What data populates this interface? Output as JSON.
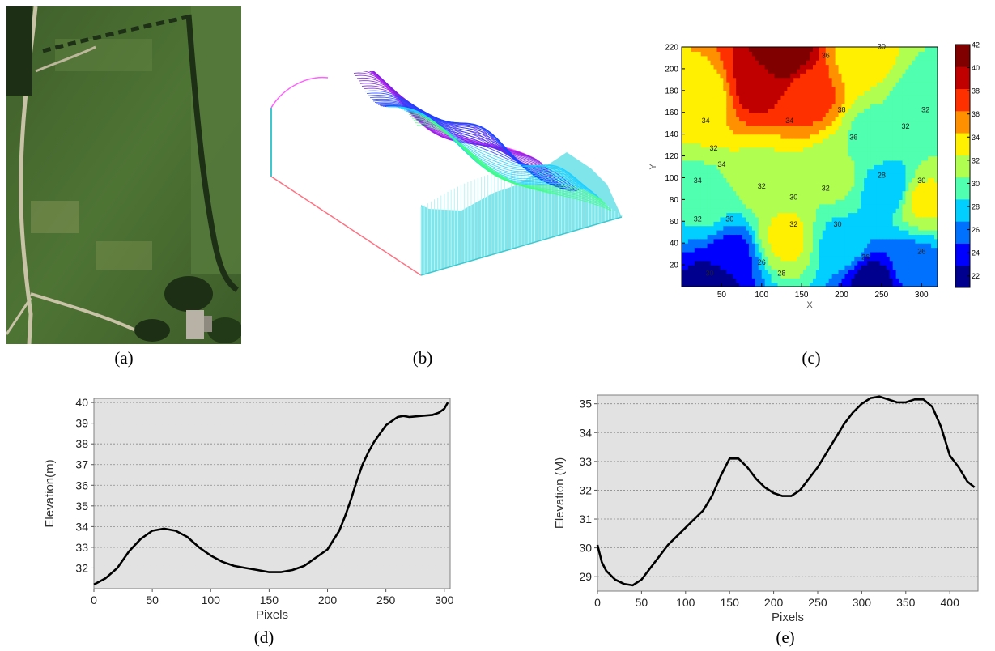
{
  "captions": {
    "a": "(a)",
    "b": "(b)",
    "c": "(c)",
    "d": "(d)",
    "e": "(e)"
  },
  "photo": {
    "colors": {
      "field": "#476a30",
      "track": "#c8c2a6",
      "hedge": "#1d3015",
      "roof": "#b8b1a6"
    }
  },
  "surface_colors": [
    "#ff40ff",
    "#8020e0",
    "#2040ff",
    "#20d0ff",
    "#40ff80",
    "#f0ff40"
  ],
  "chart_data": [
    {
      "id": "c",
      "type": "heatmap",
      "subtype": "contour",
      "title": "",
      "xlabel": "X",
      "ylabel": "Y",
      "xlim": [
        0,
        320
      ],
      "ylim": [
        0,
        220
      ],
      "x_ticks": [
        50,
        100,
        150,
        200,
        250,
        300
      ],
      "y_ticks": [
        20,
        40,
        60,
        80,
        100,
        120,
        140,
        160,
        180,
        200,
        220
      ],
      "colorbar": {
        "ticks": [
          22,
          24,
          26,
          28,
          30,
          32,
          34,
          36,
          38,
          40,
          42
        ],
        "range": [
          21,
          42
        ],
        "colors": [
          "#00008f",
          "#0000ff",
          "#0070ff",
          "#00cfff",
          "#50ffaf",
          "#b0ff50",
          "#ffef00",
          "#ff9000",
          "#ff3000",
          "#c00000",
          "#800000"
        ]
      },
      "field_peaks": [
        {
          "x": 125,
          "y": 215,
          "v": 42
        },
        {
          "x": 90,
          "y": 185,
          "v": 39
        },
        {
          "x": 160,
          "y": 175,
          "v": 37
        },
        {
          "x": 30,
          "y": 175,
          "v": 33
        },
        {
          "x": 230,
          "y": 210,
          "v": 33
        },
        {
          "x": 305,
          "y": 170,
          "v": 29
        },
        {
          "x": 130,
          "y": 45,
          "v": 33
        },
        {
          "x": 100,
          "y": 100,
          "v": 32
        },
        {
          "x": 190,
          "y": 100,
          "v": 31
        },
        {
          "x": 300,
          "y": 80,
          "v": 33
        },
        {
          "x": 60,
          "y": 30,
          "v": 24
        },
        {
          "x": 40,
          "y": 5,
          "v": 22
        },
        {
          "x": 240,
          "y": 5,
          "v": 22
        },
        {
          "x": 290,
          "y": 20,
          "v": 26
        },
        {
          "x": 260,
          "y": 90,
          "v": 27
        },
        {
          "x": 30,
          "y": 70,
          "v": 29
        },
        {
          "x": 200,
          "y": 40,
          "v": 28
        },
        {
          "x": 240,
          "y": 140,
          "v": 30
        }
      ],
      "contour_labels": [
        {
          "x": 180,
          "y": 210,
          "t": "36"
        },
        {
          "x": 250,
          "y": 218,
          "t": "30"
        },
        {
          "x": 200,
          "y": 160,
          "t": "38"
        },
        {
          "x": 135,
          "y": 150,
          "t": "34"
        },
        {
          "x": 40,
          "y": 125,
          "t": "32"
        },
        {
          "x": 215,
          "y": 135,
          "t": "36"
        },
        {
          "x": 280,
          "y": 145,
          "t": "32"
        },
        {
          "x": 305,
          "y": 160,
          "t": "32"
        },
        {
          "x": 50,
          "y": 110,
          "t": "34"
        },
        {
          "x": 30,
          "y": 150,
          "t": "34"
        },
        {
          "x": 20,
          "y": 95,
          "t": "34"
        },
        {
          "x": 100,
          "y": 90,
          "t": "32"
        },
        {
          "x": 140,
          "y": 80,
          "t": "30"
        },
        {
          "x": 180,
          "y": 88,
          "t": "32"
        },
        {
          "x": 140,
          "y": 55,
          "t": "32"
        },
        {
          "x": 195,
          "y": 55,
          "t": "30"
        },
        {
          "x": 60,
          "y": 60,
          "t": "30"
        },
        {
          "x": 20,
          "y": 60,
          "t": "32"
        },
        {
          "x": 100,
          "y": 20,
          "t": "26"
        },
        {
          "x": 35,
          "y": 10,
          "t": "30"
        },
        {
          "x": 230,
          "y": 25,
          "t": "26"
        },
        {
          "x": 300,
          "y": 30,
          "t": "26"
        },
        {
          "x": 250,
          "y": 100,
          "t": "28"
        },
        {
          "x": 300,
          "y": 95,
          "t": "30"
        },
        {
          "x": 125,
          "y": 10,
          "t": "28"
        }
      ]
    },
    {
      "id": "d",
      "type": "line",
      "title": "",
      "xlabel": "Pixels",
      "ylabel": "Elevation(m)",
      "xlim": [
        0,
        305
      ],
      "ylim": [
        31,
        40.2
      ],
      "x_ticks": [
        0,
        50,
        100,
        150,
        200,
        250,
        300
      ],
      "y_ticks": [
        32,
        33,
        34,
        35,
        36,
        37,
        38,
        39,
        40
      ],
      "y_grid": [
        32,
        33,
        34,
        35,
        36,
        37,
        38,
        39,
        40
      ],
      "series": [
        {
          "x": [
            0,
            10,
            20,
            30,
            40,
            50,
            60,
            70,
            80,
            90,
            100,
            110,
            120,
            130,
            140,
            150,
            160,
            170,
            180,
            190,
            200,
            210,
            215,
            220,
            225,
            230,
            235,
            240,
            245,
            250,
            255,
            260,
            265,
            270,
            280,
            290,
            295,
            300,
            303
          ],
          "y": [
            31.2,
            31.5,
            32.0,
            32.8,
            33.4,
            33.8,
            33.9,
            33.8,
            33.5,
            33.0,
            32.6,
            32.3,
            32.1,
            32.0,
            31.9,
            31.8,
            31.8,
            31.9,
            32.1,
            32.5,
            32.9,
            33.8,
            34.5,
            35.3,
            36.2,
            37.0,
            37.6,
            38.1,
            38.5,
            38.9,
            39.1,
            39.3,
            39.35,
            39.3,
            39.35,
            39.4,
            39.5,
            39.7,
            40.0
          ]
        }
      ]
    },
    {
      "id": "e",
      "type": "line",
      "title": "",
      "xlabel": "Pixels",
      "ylabel": "Elevation (M)",
      "xlim": [
        0,
        432
      ],
      "ylim": [
        28.5,
        35.3
      ],
      "x_ticks": [
        0,
        50,
        100,
        150,
        200,
        250,
        300,
        350,
        400
      ],
      "y_ticks": [
        29,
        30,
        31,
        32,
        33,
        34,
        35
      ],
      "y_grid": [
        29,
        30,
        31,
        32,
        33,
        34,
        35
      ],
      "series": [
        {
          "x": [
            0,
            5,
            10,
            20,
            30,
            40,
            50,
            60,
            70,
            80,
            90,
            100,
            110,
            120,
            130,
            140,
            150,
            160,
            170,
            180,
            190,
            200,
            210,
            220,
            230,
            240,
            250,
            260,
            270,
            280,
            290,
            300,
            310,
            320,
            330,
            340,
            350,
            360,
            370,
            380,
            390,
            400,
            410,
            420,
            428
          ],
          "y": [
            30.1,
            29.5,
            29.2,
            28.9,
            28.75,
            28.7,
            28.9,
            29.3,
            29.7,
            30.1,
            30.4,
            30.7,
            31.0,
            31.3,
            31.8,
            32.5,
            33.1,
            33.1,
            32.8,
            32.4,
            32.1,
            31.9,
            31.8,
            31.8,
            32.0,
            32.4,
            32.8,
            33.3,
            33.8,
            34.3,
            34.7,
            35.0,
            35.2,
            35.25,
            35.15,
            35.05,
            35.05,
            35.15,
            35.15,
            34.9,
            34.2,
            33.2,
            32.8,
            32.3,
            32.1
          ]
        }
      ]
    }
  ]
}
